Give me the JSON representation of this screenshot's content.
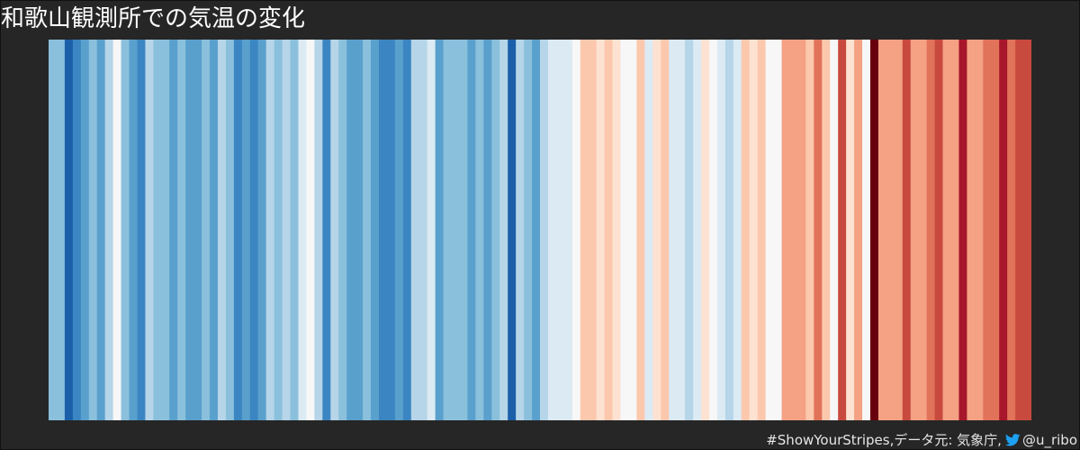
{
  "title": "和歌山観測所での気温の変化",
  "footer": {
    "hashtag": "#ShowYourStripes,",
    "source": " データ元: 気象庁,",
    "icon": "twitter-bird-icon",
    "handle": "@u_ribo"
  },
  "colors": {
    "background": "#262626",
    "scale": {
      "-3": "#08306b",
      "-2": "#1b5fa9",
      "-1": "#3b86c2",
      "0": "#5aa0cd",
      "1": "#8ac0dc",
      "2": "#b6d5e8",
      "3": "#dbeaf3",
      "4": "#f7f7f7",
      "5": "#fde2d2",
      "6": "#fbc8ad",
      "7": "#f4a184",
      "8": "#e0735a",
      "9": "#c84a3e",
      "10": "#a7162a",
      "11": "#67000d"
    }
  },
  "chart_data": {
    "type": "heatmap",
    "description_of_values": "ordinal warming-stripe color levels, -3 (coolest) to 11 (warmest), left to right",
    "values": [
      1,
      1,
      -2,
      -1,
      0,
      1,
      0,
      2,
      4,
      1,
      0,
      -1,
      2,
      1,
      1,
      0,
      1,
      0,
      0,
      1,
      0,
      2,
      1,
      -1,
      0,
      -1,
      0,
      2,
      1,
      2,
      1,
      3,
      4,
      2,
      -1,
      2,
      1,
      0,
      0,
      1,
      0,
      -1,
      -1,
      0,
      -1,
      2,
      2,
      3,
      0,
      1,
      1,
      1,
      0,
      1,
      0,
      1,
      2,
      -2,
      2,
      1,
      0,
      2,
      3,
      3,
      3,
      4,
      6,
      6,
      5,
      6,
      5,
      4,
      4,
      6,
      3,
      5,
      6,
      3,
      3,
      2,
      3,
      5,
      4,
      3,
      2,
      3,
      6,
      5,
      6,
      4,
      4,
      7,
      7,
      7,
      6,
      8,
      6,
      4,
      9,
      5,
      7,
      4,
      11,
      7,
      7,
      7,
      9,
      7,
      7,
      8,
      9,
      7,
      7,
      10,
      7,
      7,
      8,
      8,
      10,
      8,
      9,
      9
    ]
  }
}
